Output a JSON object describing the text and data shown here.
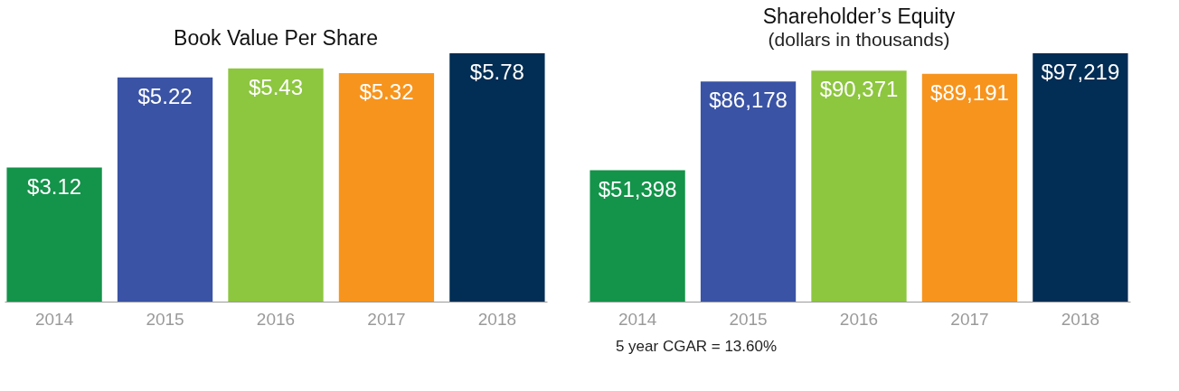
{
  "chart_data": [
    {
      "type": "bar",
      "title": "Book Value Per Share",
      "categories": [
        "2014",
        "2015",
        "2016",
        "2017",
        "2018"
      ],
      "values": [
        3.12,
        5.22,
        5.43,
        5.32,
        5.78
      ],
      "value_labels": [
        "$3.12",
        "$5.22",
        "$5.43",
        "$5.32",
        "$5.78"
      ],
      "colors": [
        "#14934a",
        "#3a53a4",
        "#8dc63f",
        "#f7941d",
        "#022d54"
      ]
    },
    {
      "type": "bar",
      "title": "Shareholder’s Equity",
      "subtitle": "(dollars in thousands)",
      "categories": [
        "2014",
        "2015",
        "2016",
        "2017",
        "2018"
      ],
      "values": [
        51398,
        86178,
        90371,
        89191,
        97219
      ],
      "value_labels": [
        "$51,398",
        "$86,178",
        "$90,371",
        "$89,191",
        "$97,219"
      ],
      "colors": [
        "#14934a",
        "#3a53a4",
        "#8dc63f",
        "#f7941d",
        "#022d54"
      ],
      "annotations": [
        "5 year CGAR = 13.60%"
      ]
    }
  ]
}
